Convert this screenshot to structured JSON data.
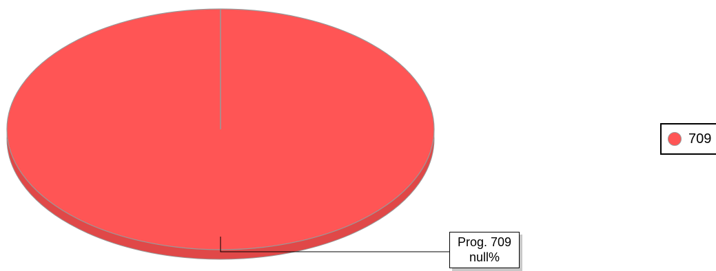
{
  "chart_data": {
    "type": "pie",
    "title": "",
    "slices": [
      {
        "name": "709",
        "value": 1,
        "color": "#ff5555"
      }
    ],
    "slice_labels": [
      {
        "line1": "Prog. 709",
        "line2": "null%"
      }
    ],
    "legend": {
      "placement": "right",
      "entries": [
        {
          "label": "709",
          "color": "#ff5555"
        }
      ]
    },
    "style": {
      "three_d": true,
      "edge_color": "#999999",
      "side_color": "#e04848"
    }
  }
}
